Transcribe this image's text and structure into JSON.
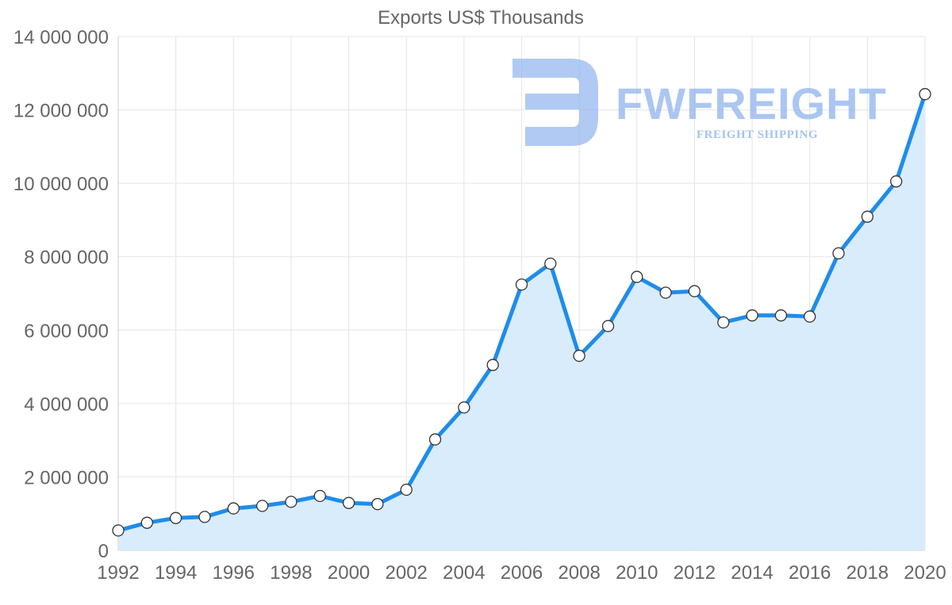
{
  "chart_data": {
    "type": "area",
    "title": "Exports US$ Thousands",
    "xlabel": "",
    "ylabel": "",
    "x": [
      1992,
      1993,
      1994,
      1995,
      1996,
      1997,
      1998,
      1999,
      2000,
      2001,
      2002,
      2003,
      2004,
      2005,
      2006,
      2007,
      2008,
      2009,
      2010,
      2011,
      2012,
      2013,
      2014,
      2015,
      2016,
      2017,
      2018,
      2019,
      2020
    ],
    "series": [
      {
        "name": "Exports US$ Thousands",
        "color": "#1f8ceb",
        "fill": "#d6ebfb",
        "values": [
          540000,
          750000,
          880000,
          910000,
          1140000,
          1210000,
          1320000,
          1480000,
          1290000,
          1260000,
          1650000,
          3020000,
          3890000,
          5050000,
          7240000,
          7810000,
          5300000,
          6110000,
          7450000,
          7020000,
          7060000,
          6210000,
          6400000,
          6400000,
          6370000,
          8090000,
          9090000,
          10050000,
          12430000
        ]
      }
    ],
    "xlim": [
      1992,
      2020
    ],
    "ylim": [
      0,
      14000000
    ],
    "x_tick_labels": [
      "1992",
      "1994",
      "1996",
      "1998",
      "2000",
      "2002",
      "2004",
      "2006",
      "2008",
      "2010",
      "2012",
      "2014",
      "2016",
      "2018",
      "2020"
    ],
    "y_tick_labels": [
      "0",
      "2 000 000",
      "4 000 000",
      "6 000 000",
      "8 000 000",
      "10 000 000",
      "12 000 000",
      "14 000 000"
    ],
    "grid": true,
    "legend": "none"
  },
  "watermark": {
    "brand": "FWFREIGHT",
    "tagline": "FREIGHT SHIPPING",
    "logo_icon": "fw-logo-icon"
  }
}
